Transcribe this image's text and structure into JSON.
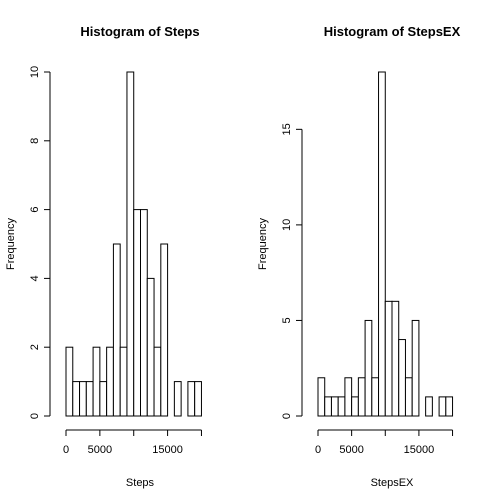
{
  "chart_data": [
    {
      "type": "bar",
      "title": "Histogram of Steps",
      "xlabel": "Steps",
      "ylabel": "Frequency",
      "bin_width": 1000,
      "bin_start": 0,
      "values": [
        2,
        1,
        1,
        1,
        2,
        1,
        2,
        5,
        2,
        10,
        6,
        6,
        4,
        2,
        5,
        0,
        1,
        0,
        1,
        1
      ],
      "xlim": [
        0,
        22000
      ],
      "ylim": [
        0,
        10
      ],
      "x_ticks": [
        0,
        5000,
        10000,
        15000,
        20000
      ],
      "x_tick_labels": [
        "0",
        "5000",
        "",
        "15000",
        ""
      ],
      "y_ticks": [
        0,
        2,
        4,
        6,
        8,
        10
      ],
      "y_tick_labels": [
        "0",
        "2",
        "4",
        "6",
        "8",
        "10"
      ]
    },
    {
      "type": "bar",
      "title": "Histogram of StepsEX",
      "xlabel": "StepsEX",
      "ylabel": "Frequency",
      "bin_width": 1000,
      "bin_start": 0,
      "values": [
        2,
        1,
        1,
        1,
        2,
        1,
        2,
        5,
        2,
        18,
        6,
        6,
        4,
        2,
        5,
        0,
        1,
        0,
        1,
        1
      ],
      "xlim": [
        0,
        22000
      ],
      "ylim": [
        0,
        18
      ],
      "x_ticks": [
        0,
        5000,
        10000,
        15000,
        20000
      ],
      "x_tick_labels": [
        "0",
        "5000",
        "",
        "15000",
        ""
      ],
      "y_ticks": [
        0,
        5,
        10,
        15
      ],
      "y_tick_labels": [
        "0",
        "5",
        "10",
        "15"
      ]
    }
  ]
}
